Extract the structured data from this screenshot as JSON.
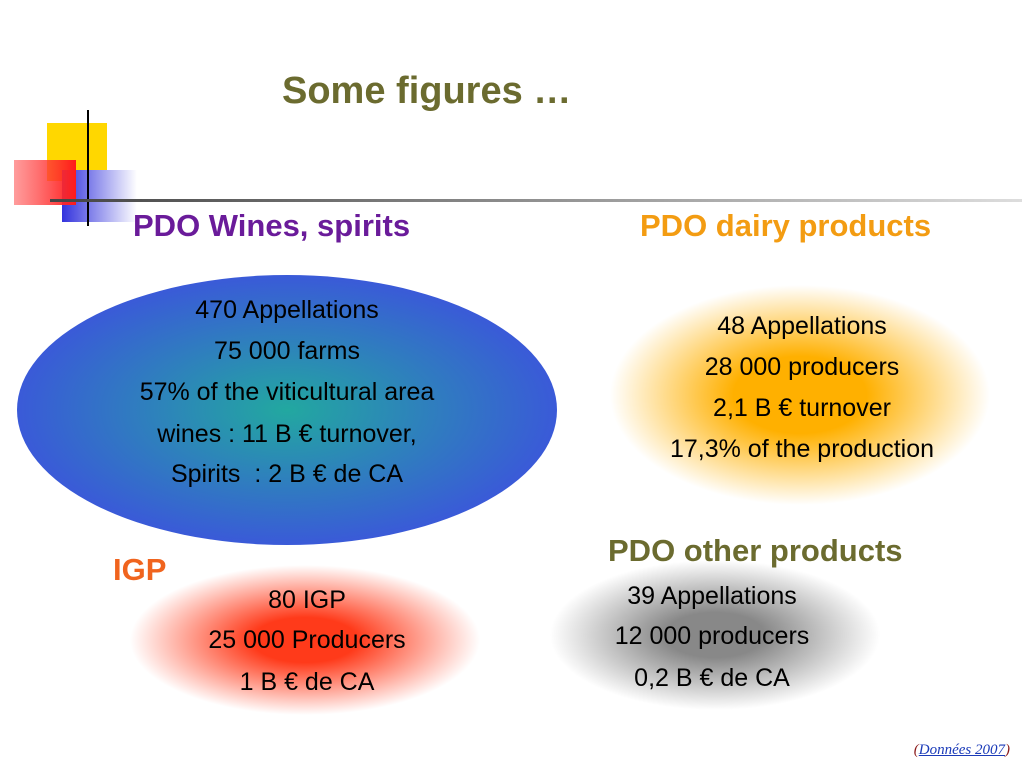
{
  "title": "Some figures …",
  "sections": [
    {
      "heading": "PDO Wines, spirits",
      "lines": [
        "470 Appellations",
        "75 000 farms",
        "57% of the viticultural area",
        "wines : 11 B € turnover,",
        "Spirits  : 2 B € de CA"
      ]
    },
    {
      "heading": "PDO dairy products",
      "lines": [
        "48 Appellations",
        "28 000 producers",
        "2,1 B € turnover",
        "17,3% of the production"
      ]
    },
    {
      "heading": "IGP",
      "lines": [
        "80 IGP",
        "25 000 Producers",
        "1 B € de CA"
      ]
    },
    {
      "heading": "PDO other products",
      "lines": [
        "39 Appellations",
        "12 000 producers",
        "0,2 B € de CA"
      ]
    }
  ],
  "footnote": {
    "open": "(",
    "link": "Données 2007",
    "close": ")"
  }
}
